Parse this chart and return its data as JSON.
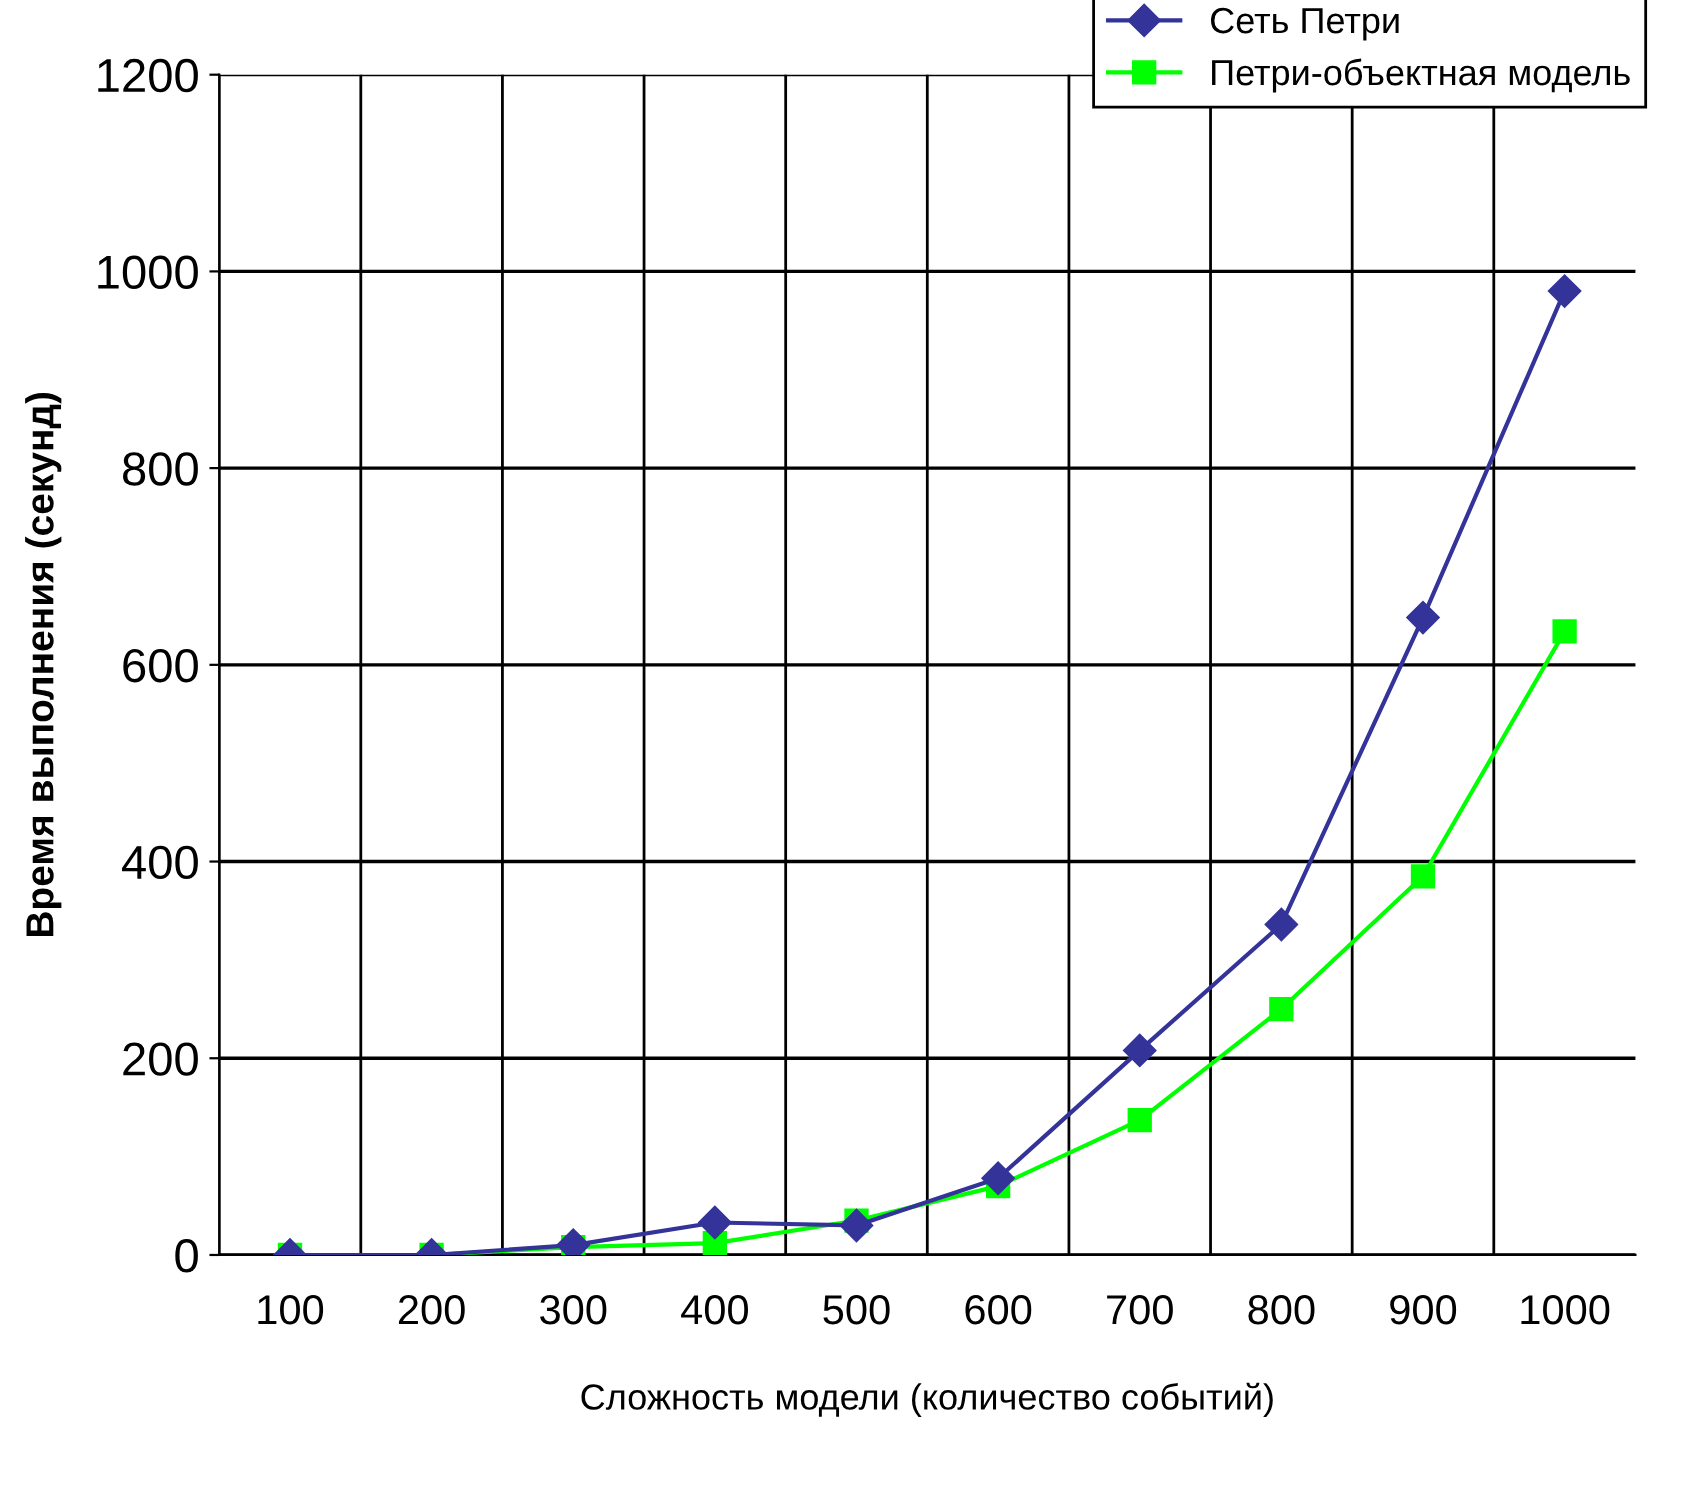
{
  "chart_data": {
    "type": "line",
    "xlabel": "Сложность модели (количество событий)",
    "ylabel": "Время выполнения (секунд)",
    "categories": [
      "100",
      "200",
      "300",
      "400",
      "500",
      "600",
      "700",
      "800",
      "900",
      "1000"
    ],
    "series": [
      {
        "name": "Сеть Петри",
        "color": "#333399",
        "marker": "diamond",
        "values": [
          0,
          0,
          10,
          33,
          30,
          78,
          208,
          336,
          648,
          980
        ]
      },
      {
        "name": "Петри-объектная модель",
        "color": "#00ff00",
        "marker": "square",
        "values": [
          0,
          0,
          8,
          12,
          35,
          70,
          137,
          250,
          385,
          634
        ]
      }
    ],
    "ylim": [
      0,
      1200
    ],
    "yticks": [
      0,
      200,
      400,
      600,
      800,
      1000,
      1200
    ],
    "grid": true,
    "legend": "top right",
    "line_style": "solid"
  }
}
